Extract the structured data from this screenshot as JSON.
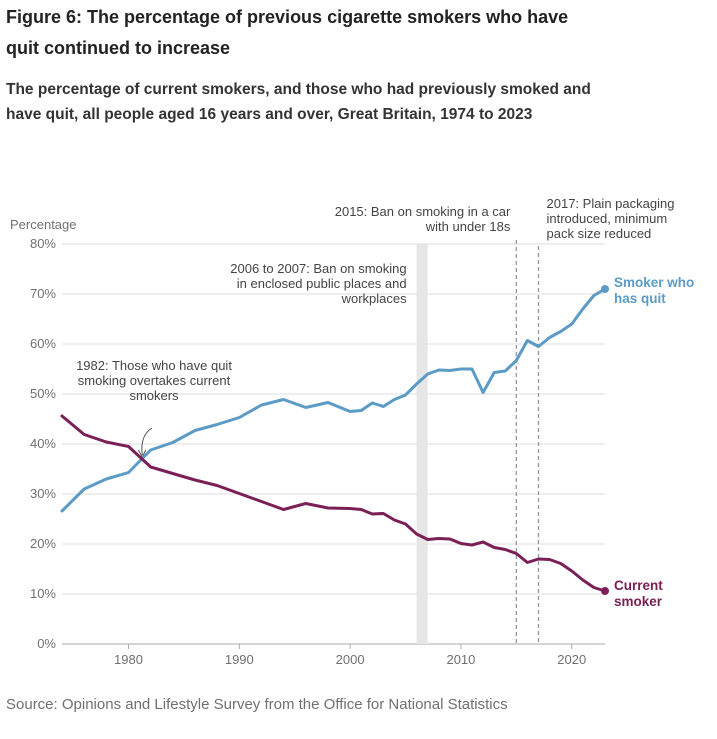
{
  "page": {
    "title": "Figure 6: The percentage of previous cigarette smokers who have quit continued to increase",
    "subtitle": "The percentage of current smokers, and those who had previously smoked and have quit, all people aged 16 years and over, Great Britain, 1974 to 2023",
    "source": "Source: Opinions and Lifestyle Survey from the Office for National Statistics"
  },
  "colors": {
    "quit": "#5b9bc6",
    "current": "#7a2057",
    "grid": "#dddddd",
    "axis": "#aaaaaa",
    "band": "#e6e6e6",
    "dashed": "#999999"
  },
  "chart_data": {
    "type": "line",
    "title": "The percentage of current smokers, and those who had previously smoked and have quit, all people aged 16 years and over, Great Britain, 1974 to 2023",
    "ylabel": "Percentage",
    "xlabel": "",
    "xlim": [
      1974,
      2023
    ],
    "ylim": [
      0,
      80
    ],
    "xticks": [
      1980,
      1990,
      2000,
      2010,
      2020
    ],
    "yticks": [
      0,
      10,
      20,
      30,
      40,
      50,
      60,
      70,
      80
    ],
    "ytick_labels": [
      "0%",
      "10%",
      "20%",
      "30%",
      "40%",
      "50%",
      "60%",
      "70%",
      "80%"
    ],
    "grid": true,
    "series": [
      {
        "name": "Smoker who has quit",
        "label_lines": [
          "Smoker who",
          "has quit"
        ],
        "color": "#5b9bc6",
        "points": [
          [
            1974,
            26.6
          ],
          [
            1976,
            31.0
          ],
          [
            1978,
            33.0
          ],
          [
            1980,
            34.3
          ],
          [
            1982,
            38.8
          ],
          [
            1984,
            40.3
          ],
          [
            1986,
            42.7
          ],
          [
            1988,
            43.9
          ],
          [
            1990,
            45.3
          ],
          [
            1992,
            47.8
          ],
          [
            1994,
            48.9
          ],
          [
            1996,
            47.3
          ],
          [
            1998,
            48.3
          ],
          [
            2000,
            46.5
          ],
          [
            2001,
            46.7
          ],
          [
            2002,
            48.2
          ],
          [
            2003,
            47.5
          ],
          [
            2004,
            48.9
          ],
          [
            2005,
            49.8
          ],
          [
            2006,
            52.0
          ],
          [
            2007,
            54.0
          ],
          [
            2008,
            54.8
          ],
          [
            2009,
            54.7
          ],
          [
            2010,
            55.0
          ],
          [
            2011,
            55.0
          ],
          [
            2012,
            50.3
          ],
          [
            2013,
            54.3
          ],
          [
            2014,
            54.6
          ],
          [
            2015,
            56.7
          ],
          [
            2016,
            60.7
          ],
          [
            2017,
            59.5
          ],
          [
            2018,
            61.3
          ],
          [
            2019,
            62.5
          ],
          [
            2020,
            64.0
          ],
          [
            2021,
            67.0
          ],
          [
            2022,
            69.7
          ],
          [
            2023,
            71.0
          ]
        ]
      },
      {
        "name": "Current smoker",
        "label_lines": [
          "Current",
          "smoker"
        ],
        "color": "#7a2057",
        "points": [
          [
            1974,
            45.6
          ],
          [
            1976,
            41.9
          ],
          [
            1978,
            40.4
          ],
          [
            1980,
            39.5
          ],
          [
            1982,
            35.4
          ],
          [
            1984,
            34.1
          ],
          [
            1986,
            32.8
          ],
          [
            1988,
            31.7
          ],
          [
            1990,
            30.1
          ],
          [
            1992,
            28.5
          ],
          [
            1994,
            26.9
          ],
          [
            1996,
            28.1
          ],
          [
            1998,
            27.2
          ],
          [
            2000,
            27.1
          ],
          [
            2001,
            26.9
          ],
          [
            2002,
            26.0
          ],
          [
            2003,
            26.1
          ],
          [
            2004,
            24.8
          ],
          [
            2005,
            24.0
          ],
          [
            2006,
            22.0
          ],
          [
            2007,
            20.9
          ],
          [
            2008,
            21.1
          ],
          [
            2009,
            21.0
          ],
          [
            2010,
            20.1
          ],
          [
            2011,
            19.8
          ],
          [
            2012,
            20.4
          ],
          [
            2013,
            19.3
          ],
          [
            2014,
            18.9
          ],
          [
            2015,
            18.1
          ],
          [
            2016,
            16.3
          ],
          [
            2017,
            17.0
          ],
          [
            2018,
            16.9
          ],
          [
            2019,
            16.1
          ],
          [
            2020,
            14.6
          ],
          [
            2021,
            12.8
          ],
          [
            2022,
            11.3
          ],
          [
            2023,
            10.6
          ]
        ]
      }
    ],
    "annotations": [
      {
        "kind": "band",
        "x0": 2006,
        "x1": 2007,
        "text_lines": [
          "2006 to 2007: Ban on smoking",
          "in enclosed public places and",
          "workplaces"
        ]
      },
      {
        "kind": "dashed_line",
        "x": 2015,
        "text_lines": [
          "2015: Ban on smoking in a car",
          "with under 18s"
        ]
      },
      {
        "kind": "dashed_line",
        "x": 2017,
        "text_lines": [
          "2017: Plain packaging",
          "introduced, minimum",
          "pack size reduced"
        ]
      },
      {
        "kind": "arrow",
        "x": 1981.2,
        "y": 37.2,
        "text_lines": [
          "1982: Those who have quit",
          "smoking overtakes current",
          "smokers"
        ]
      }
    ]
  }
}
